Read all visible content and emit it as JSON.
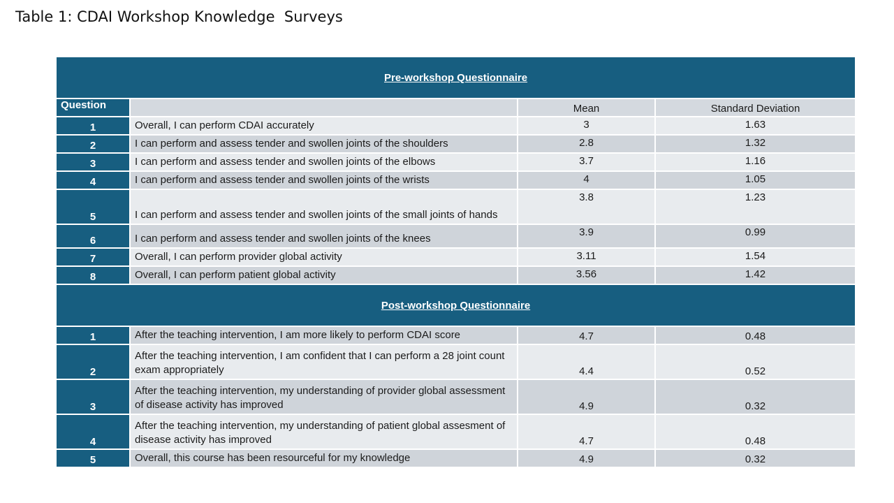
{
  "title": "Table 1: CDAI Workshop Knowledge  Surveys",
  "columns": {
    "question": "Question",
    "mean": "Mean",
    "sd": "Standard Deviation"
  },
  "pre": {
    "heading": "Pre-workshop Questionnaire",
    "rows": [
      {
        "num": "1",
        "text": "Overall, I can perform CDAI accurately",
        "mean": "3",
        "sd": "1.63"
      },
      {
        "num": "2",
        "text": "I can perform and assess tender and swollen joints of the shoulders",
        "mean": "2.8",
        "sd": "1.32"
      },
      {
        "num": "3",
        "text": "I can perform and assess tender and swollen joints of the elbows",
        "mean": "3.7",
        "sd": "1.16"
      },
      {
        "num": "4",
        "text": "I can perform and assess tender and swollen joints of the wrists",
        "mean": "4",
        "sd": "1.05"
      },
      {
        "num": "5",
        "text": "I can perform and assess tender and swollen joints of the small joints of hands",
        "mean": "3.8",
        "sd": "1.23"
      },
      {
        "num": "6",
        "text": "I can perform and assess tender and swollen joints of the knees",
        "mean": "3.9",
        "sd": "0.99"
      },
      {
        "num": "7",
        "text": "Overall, I can perform provider global activity",
        "mean": "3.11",
        "sd": "1.54"
      },
      {
        "num": "8",
        "text": "Overall, I can perform patient global activity",
        "mean": "3.56",
        "sd": "1.42"
      }
    ]
  },
  "post": {
    "heading": "Post-workshop Questionnaire",
    "rows": [
      {
        "num": "1",
        "text": "After the teaching intervention, I am more likely to perform CDAI score",
        "mean": "4.7",
        "sd": "0.48"
      },
      {
        "num": "2",
        "text": "After the teaching intervention, I am confident that I can perform a 28 joint count exam appropriately",
        "mean": "4.4",
        "sd": "0.52"
      },
      {
        "num": "3",
        "text": "After the teaching intervention, my understanding of provider global assessment of disease activity has improved",
        "mean": "4.9",
        "sd": "0.32"
      },
      {
        "num": "4",
        "text": "After the teaching intervention, my understanding of patient global assesment of disease activity has improved",
        "mean": "4.7",
        "sd": "0.48"
      },
      {
        "num": "5",
        "text": "Overall, this course has been resourceful for my knowledge",
        "mean": "4.9",
        "sd": "0.32"
      }
    ]
  }
}
